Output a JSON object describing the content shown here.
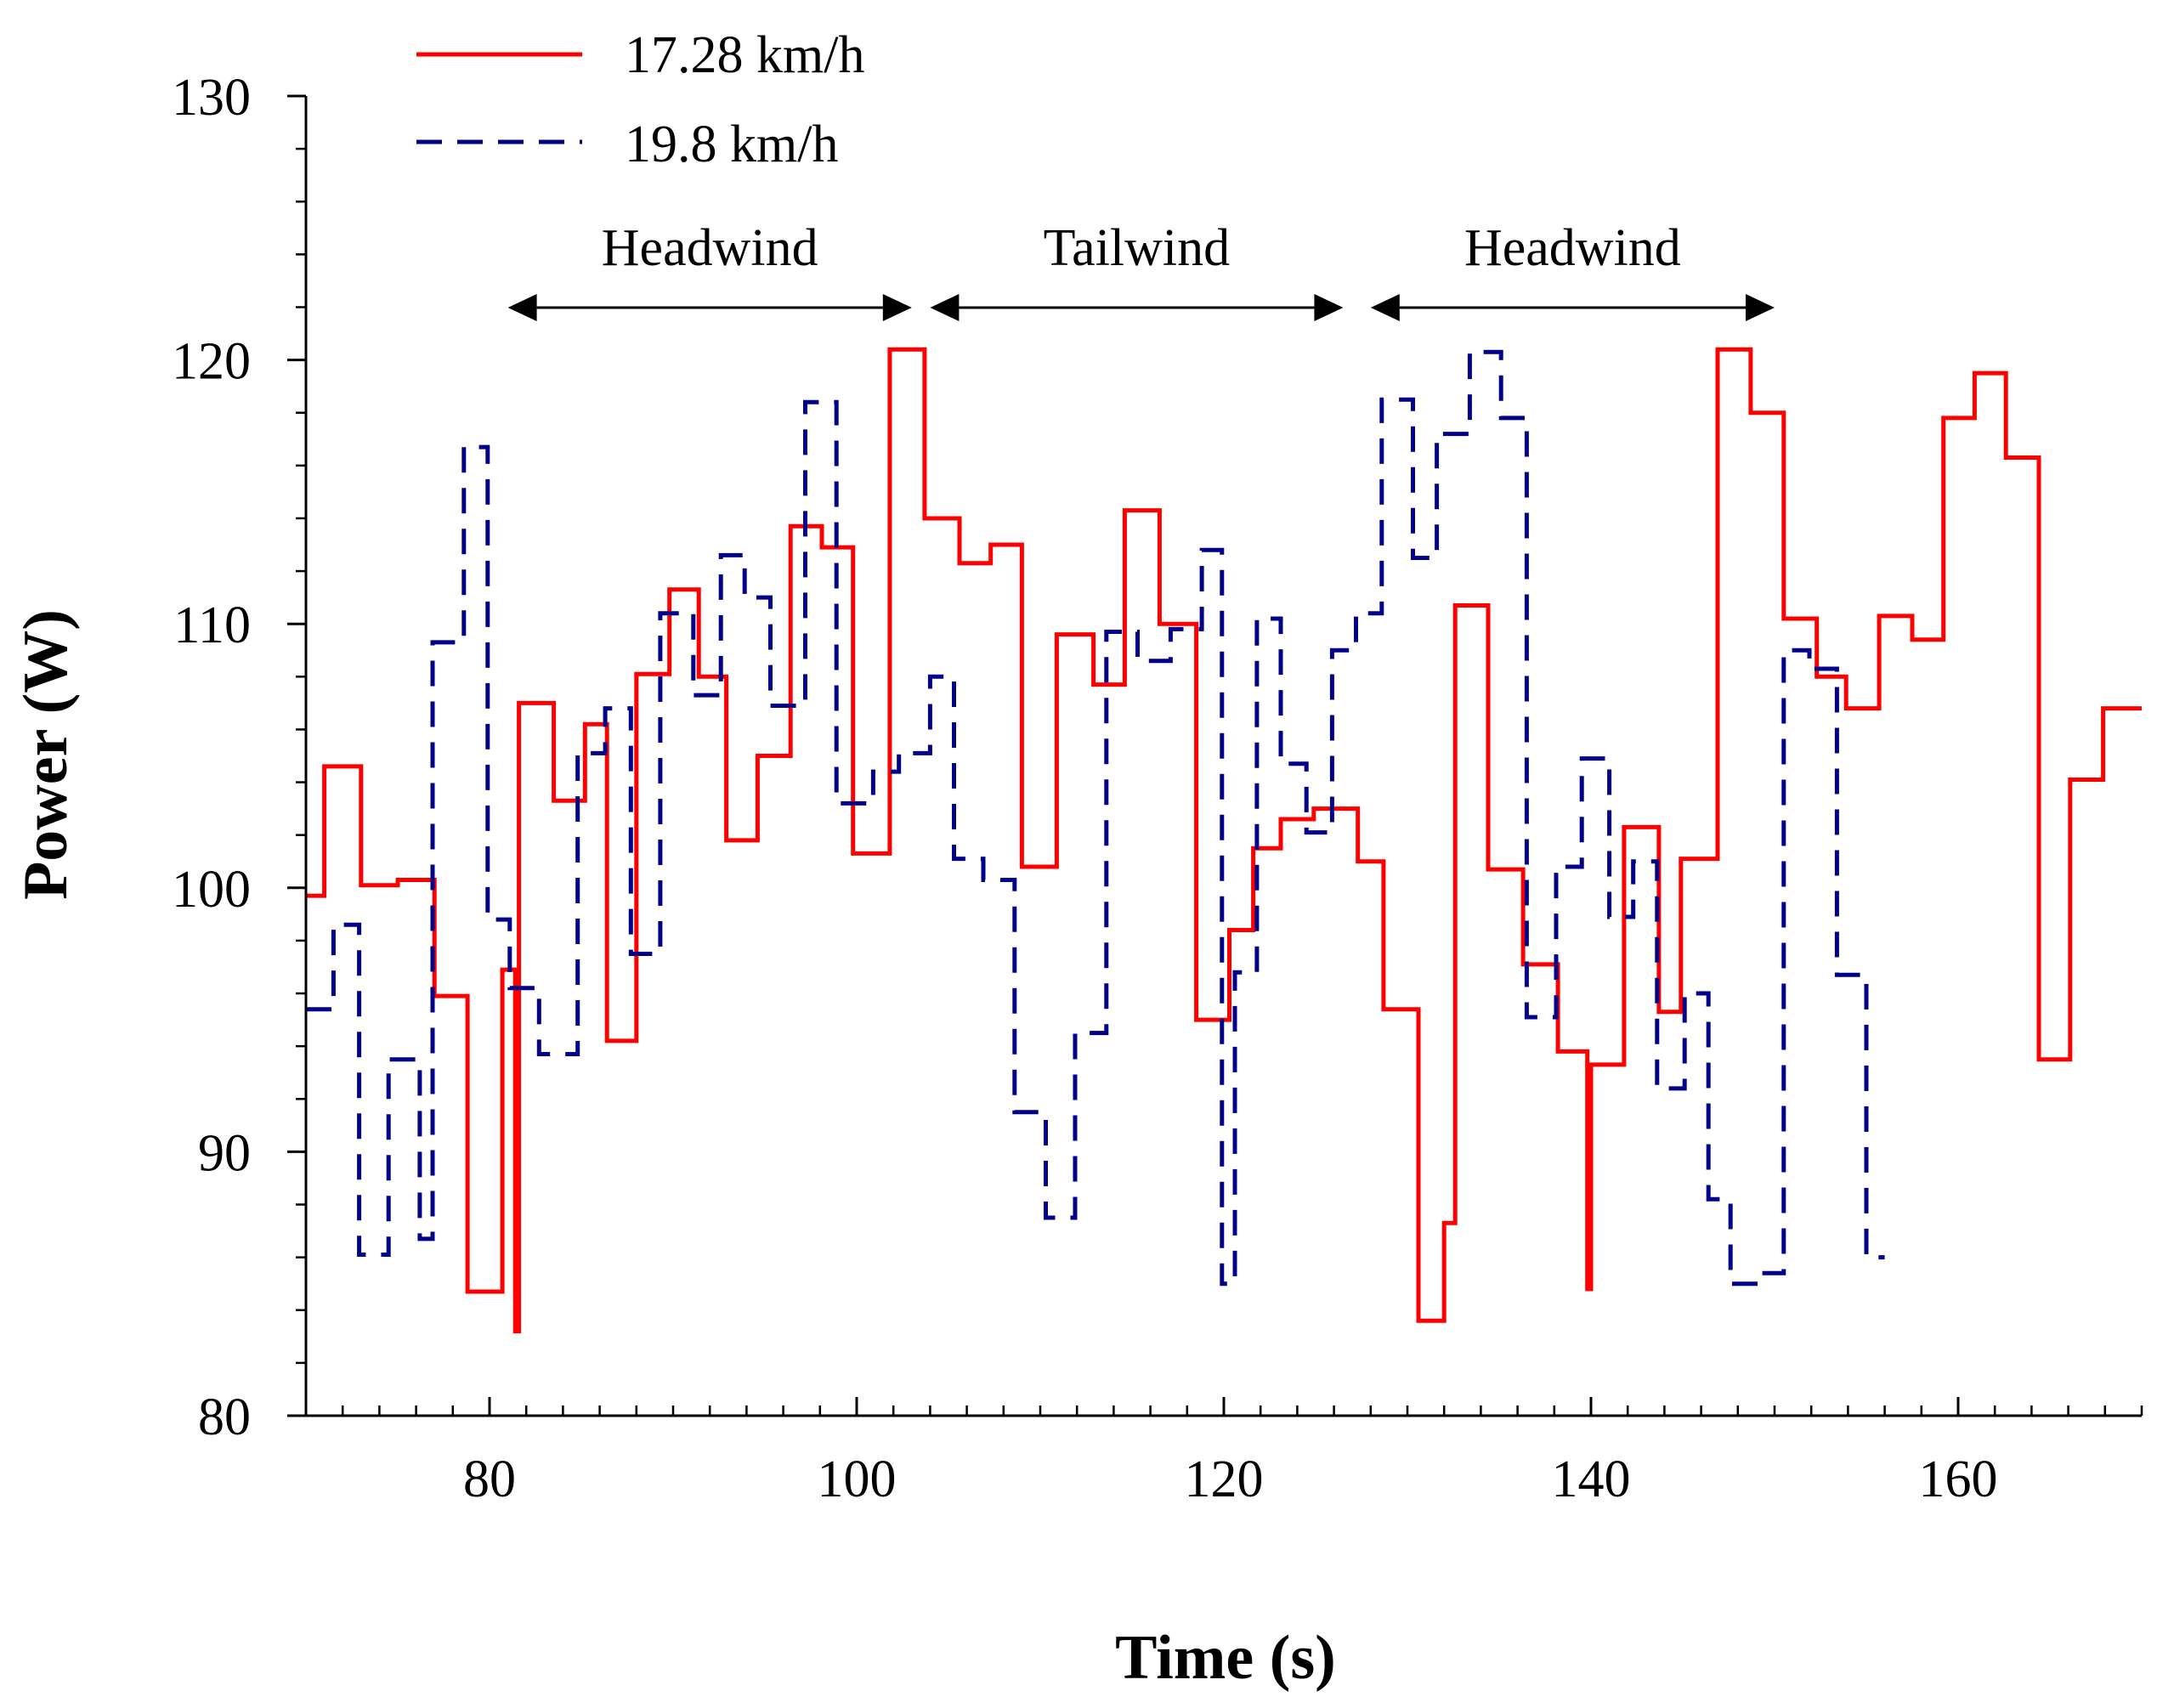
{
  "chart_data": {
    "type": "line",
    "title": "",
    "xlabel": "Time (s)",
    "ylabel": "Power (W)",
    "xlim": [
      70,
      170
    ],
    "ylim": [
      80,
      130
    ],
    "x_ticks": [
      80,
      100,
      120,
      140,
      160
    ],
    "y_ticks": [
      80,
      90,
      100,
      110,
      120,
      130
    ],
    "x_tick_labels": [
      "80",
      "100",
      "120",
      "140",
      "160"
    ],
    "y_tick_labels": [
      "80",
      "90",
      "100",
      "110",
      "120",
      "130"
    ],
    "x_minor_step": 2,
    "y_minor_step": 2,
    "grid": false,
    "legend_position": "top-left",
    "colors": {
      "series_1": "#ff0000",
      "series_2": "#00008b",
      "axis": "#000000"
    },
    "series": [
      {
        "name": "17.28 km/h",
        "style": "solid",
        "points": [
          [
            70,
            99.7
          ],
          [
            71,
            99.7
          ],
          [
            71,
            104.6
          ],
          [
            73,
            104.6
          ],
          [
            73,
            100.1
          ],
          [
            75,
            100.1
          ],
          [
            75,
            100.3
          ],
          [
            77,
            100.3
          ],
          [
            77,
            95.9
          ],
          [
            78.8,
            95.9
          ],
          [
            78.8,
            84.7
          ],
          [
            80.7,
            84.7
          ],
          [
            80.7,
            96.9
          ],
          [
            81.4,
            96.9
          ],
          [
            81.4,
            83.2
          ],
          [
            81.6,
            83.2
          ],
          [
            81.6,
            107
          ],
          [
            83.5,
            107
          ],
          [
            83.5,
            103.3
          ],
          [
            85.2,
            103.3
          ],
          [
            85.2,
            106.2
          ],
          [
            86.4,
            106.2
          ],
          [
            86.4,
            94.2
          ],
          [
            88,
            94.2
          ],
          [
            88,
            108.1
          ],
          [
            89.8,
            108.1
          ],
          [
            89.8,
            111.3
          ],
          [
            91.4,
            111.3
          ],
          [
            91.4,
            108
          ],
          [
            92.9,
            108
          ],
          [
            92.9,
            101.8
          ],
          [
            94.6,
            101.8
          ],
          [
            94.6,
            105
          ],
          [
            96.4,
            105
          ],
          [
            96.4,
            113.7
          ],
          [
            98.1,
            113.7
          ],
          [
            98.1,
            112.9
          ],
          [
            99.8,
            112.9
          ],
          [
            99.8,
            101.3
          ],
          [
            101.8,
            101.3
          ],
          [
            101.8,
            120.4
          ],
          [
            103.7,
            120.4
          ],
          [
            103.7,
            114
          ],
          [
            105.6,
            114
          ],
          [
            105.6,
            112.3
          ],
          [
            107.3,
            112.3
          ],
          [
            107.3,
            113
          ],
          [
            109,
            113
          ],
          [
            109,
            100.8
          ],
          [
            110.9,
            100.8
          ],
          [
            110.9,
            109.6
          ],
          [
            112.9,
            109.6
          ],
          [
            112.9,
            107.7
          ],
          [
            114.6,
            107.7
          ],
          [
            114.6,
            114.3
          ],
          [
            116.5,
            114.3
          ],
          [
            116.5,
            110
          ],
          [
            118.5,
            110
          ],
          [
            118.5,
            95
          ],
          [
            120.3,
            95
          ],
          [
            120.3,
            98.4
          ],
          [
            121.6,
            98.4
          ],
          [
            121.6,
            101.5
          ],
          [
            123.1,
            101.5
          ],
          [
            123.1,
            102.6
          ],
          [
            124.9,
            102.6
          ],
          [
            124.9,
            103
          ],
          [
            127.3,
            103
          ],
          [
            127.3,
            101
          ],
          [
            128.7,
            101
          ],
          [
            128.7,
            95.4
          ],
          [
            130.6,
            95.4
          ],
          [
            130.6,
            83.6
          ],
          [
            132,
            83.6
          ],
          [
            132,
            87.3
          ],
          [
            132.6,
            87.3
          ],
          [
            132.6,
            110.7
          ],
          [
            134.4,
            110.7
          ],
          [
            134.4,
            100.7
          ],
          [
            136.3,
            100.7
          ],
          [
            136.3,
            97.1
          ],
          [
            138.2,
            97.1
          ],
          [
            138.2,
            93.8
          ],
          [
            139.8,
            93.8
          ],
          [
            139.8,
            84.8
          ],
          [
            140,
            84.8
          ],
          [
            140,
            93.3
          ],
          [
            141.8,
            93.3
          ],
          [
            141.8,
            102.3
          ],
          [
            143.7,
            102.3
          ],
          [
            143.7,
            95.3
          ],
          [
            144.9,
            95.3
          ],
          [
            144.9,
            101.1
          ],
          [
            146.9,
            101.1
          ],
          [
            146.9,
            120.4
          ],
          [
            148.7,
            120.4
          ],
          [
            148.7,
            118
          ],
          [
            150.5,
            118
          ],
          [
            150.5,
            110.2
          ],
          [
            152.3,
            110.2
          ],
          [
            152.3,
            108
          ],
          [
            153.9,
            108
          ],
          [
            153.9,
            106.8
          ],
          [
            155.7,
            106.8
          ],
          [
            155.7,
            110.3
          ],
          [
            157.5,
            110.3
          ],
          [
            157.5,
            109.4
          ],
          [
            159.2,
            109.4
          ],
          [
            159.2,
            117.8
          ],
          [
            160.9,
            117.8
          ],
          [
            160.9,
            119.5
          ],
          [
            162.6,
            119.5
          ],
          [
            162.6,
            116.3
          ],
          [
            164.4,
            116.3
          ],
          [
            164.4,
            93.5
          ],
          [
            166.1,
            93.5
          ],
          [
            166.1,
            104.1
          ],
          [
            167.9,
            104.1
          ],
          [
            167.9,
            106.8
          ],
          [
            170,
            106.8
          ]
        ]
      },
      {
        "name": "19.8 km/h",
        "style": "dashed",
        "points": [
          [
            70,
            95.4
          ],
          [
            71.5,
            95.4
          ],
          [
            71.5,
            98.6
          ],
          [
            72.9,
            98.6
          ],
          [
            72.9,
            86.1
          ],
          [
            74.5,
            86.1
          ],
          [
            74.5,
            93.5
          ],
          [
            76.2,
            93.5
          ],
          [
            76.2,
            86.7
          ],
          [
            76.9,
            86.7
          ],
          [
            76.9,
            109.3
          ],
          [
            78.6,
            109.3
          ],
          [
            78.6,
            116.7
          ],
          [
            79.9,
            116.7
          ],
          [
            79.9,
            98.8
          ],
          [
            81.1,
            98.8
          ],
          [
            81.1,
            96.2
          ],
          [
            82.7,
            96.2
          ],
          [
            82.7,
            93.7
          ],
          [
            84.8,
            93.7
          ],
          [
            84.8,
            105.1
          ],
          [
            86.3,
            105.1
          ],
          [
            86.3,
            106.8
          ],
          [
            87.7,
            106.8
          ],
          [
            87.7,
            97.5
          ],
          [
            89.3,
            97.5
          ],
          [
            89.3,
            110.4
          ],
          [
            91.1,
            110.4
          ],
          [
            91.1,
            107.3
          ],
          [
            92.6,
            107.3
          ],
          [
            92.6,
            112.6
          ],
          [
            93.9,
            112.6
          ],
          [
            93.9,
            111
          ],
          [
            95.3,
            111
          ],
          [
            95.3,
            106.9
          ],
          [
            97.2,
            106.9
          ],
          [
            97.2,
            118.4
          ],
          [
            98.9,
            118.4
          ],
          [
            98.9,
            103.2
          ],
          [
            100.9,
            103.2
          ],
          [
            100.9,
            104.4
          ],
          [
            102.3,
            104.4
          ],
          [
            102.3,
            105.1
          ],
          [
            104,
            105.1
          ],
          [
            104,
            108
          ],
          [
            105.3,
            108
          ],
          [
            105.3,
            101.1
          ],
          [
            106.9,
            101.1
          ],
          [
            106.9,
            100.3
          ],
          [
            108.6,
            100.3
          ],
          [
            108.6,
            91.5
          ],
          [
            110.3,
            91.5
          ],
          [
            110.3,
            87.5
          ],
          [
            111.9,
            87.5
          ],
          [
            111.9,
            94.5
          ],
          [
            113.6,
            94.5
          ],
          [
            113.6,
            109.7
          ],
          [
            115.3,
            109.7
          ],
          [
            115.3,
            108.6
          ],
          [
            117.1,
            108.6
          ],
          [
            117.1,
            109.8
          ],
          [
            118.8,
            109.8
          ],
          [
            118.8,
            112.8
          ],
          [
            119.9,
            112.8
          ],
          [
            119.9,
            85
          ],
          [
            120.6,
            85
          ],
          [
            120.6,
            96.8
          ],
          [
            121.8,
            96.8
          ],
          [
            121.8,
            110.2
          ],
          [
            123.1,
            110.2
          ],
          [
            123.1,
            104.7
          ],
          [
            124.5,
            104.7
          ],
          [
            124.5,
            102.1
          ],
          [
            125.9,
            102.1
          ],
          [
            125.9,
            109
          ],
          [
            127.2,
            109
          ],
          [
            127.2,
            110.4
          ],
          [
            128.6,
            110.4
          ],
          [
            128.6,
            118.5
          ],
          [
            130.3,
            118.5
          ],
          [
            130.3,
            112.5
          ],
          [
            131.6,
            112.5
          ],
          [
            131.6,
            117.2
          ],
          [
            133.4,
            117.2
          ],
          [
            133.4,
            120.3
          ],
          [
            135.1,
            120.3
          ],
          [
            135.1,
            117.8
          ],
          [
            136.5,
            117.8
          ],
          [
            136.5,
            95.1
          ],
          [
            138.1,
            95.1
          ],
          [
            138.1,
            100.8
          ],
          [
            139.5,
            100.8
          ],
          [
            139.5,
            104.9
          ],
          [
            141,
            104.9
          ],
          [
            141,
            98.9
          ],
          [
            142.3,
            98.9
          ],
          [
            142.3,
            101
          ],
          [
            143.6,
            101
          ],
          [
            143.6,
            92.4
          ],
          [
            145.1,
            92.4
          ],
          [
            145.1,
            96
          ],
          [
            146.4,
            96
          ],
          [
            146.4,
            88.2
          ],
          [
            147.6,
            88.2
          ],
          [
            147.6,
            85
          ],
          [
            149.3,
            85
          ],
          [
            149.3,
            85.4
          ],
          [
            150.5,
            85.4
          ],
          [
            150.5,
            109
          ],
          [
            151.9,
            109
          ],
          [
            151.9,
            108.3
          ],
          [
            153.4,
            108.3
          ],
          [
            153.4,
            96.7
          ],
          [
            155,
            96.7
          ],
          [
            155,
            86
          ],
          [
            156,
            86
          ]
        ]
      }
    ],
    "annotations": [
      {
        "label": "Headwind",
        "x_start": 81,
        "x_end": 103
      },
      {
        "label": "Tailwind",
        "x_start": 104,
        "x_end": 126.5
      },
      {
        "label": "Headwind",
        "x_start": 128,
        "x_end": 150
      }
    ]
  }
}
